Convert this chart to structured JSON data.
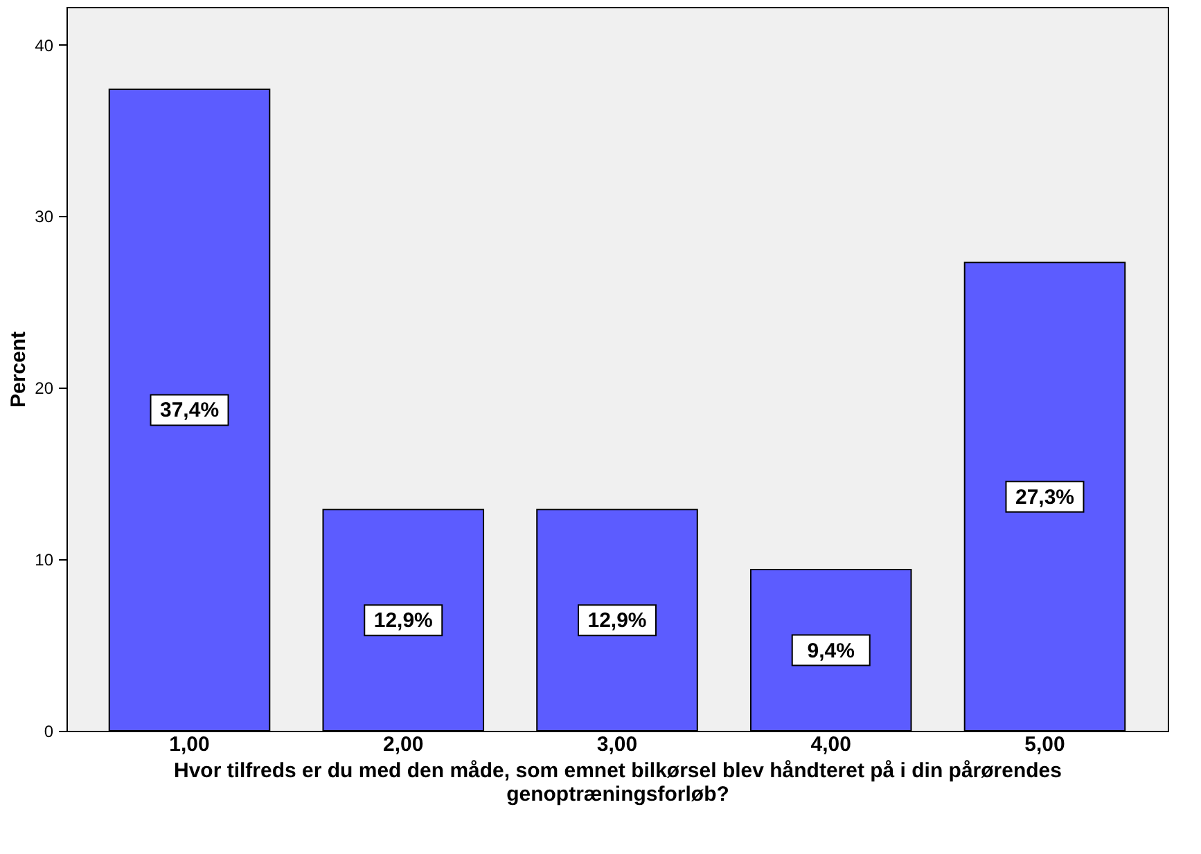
{
  "chart_data": {
    "type": "bar",
    "categories": [
      "1,00",
      "2,00",
      "3,00",
      "4,00",
      "5,00"
    ],
    "values": [
      37.4,
      12.9,
      12.9,
      9.4,
      27.3
    ],
    "value_labels": [
      "37,4%",
      "12,9%",
      "12,9%",
      "9,4%",
      "27,3%"
    ],
    "color": "#5c5cff",
    "xlabel": "Hvor tilfreds er du med den måde, som emnet bilkørsel blev håndteret på i din pårørendes genoptræningsforløb?",
    "ylabel": "Percent",
    "ylim": [
      0,
      42.2
    ],
    "yticks": [
      0,
      10,
      20,
      30,
      40
    ],
    "grid": false
  }
}
